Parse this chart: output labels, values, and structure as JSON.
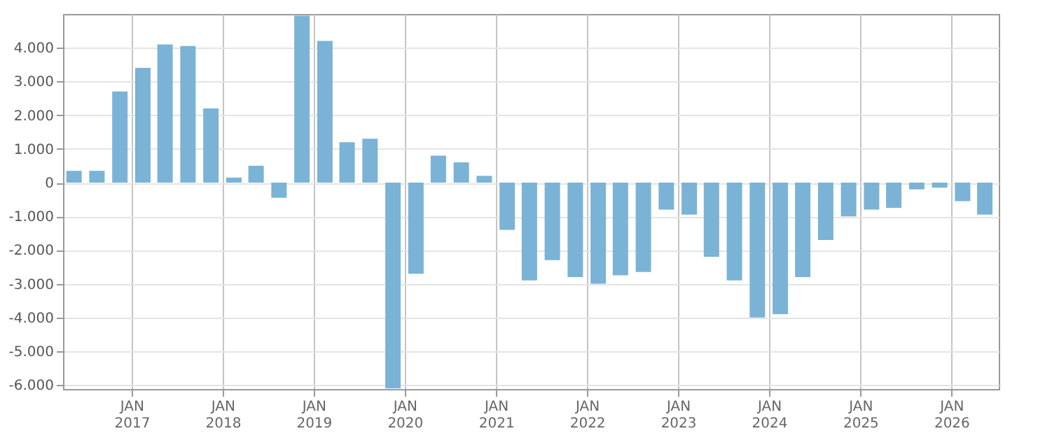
{
  "chart_data": {
    "type": "bar",
    "x": [
      "2016-05-15",
      "2016-08-15",
      "2016-11-15",
      "2017-02-15",
      "2017-05-15",
      "2017-08-15",
      "2017-11-15",
      "2018-02-15",
      "2018-05-15",
      "2018-08-15",
      "2018-11-15",
      "2019-02-15",
      "2019-05-15",
      "2019-08-15",
      "2019-11-15",
      "2020-02-15",
      "2020-05-15",
      "2020-08-15",
      "2020-11-15",
      "2021-02-15",
      "2021-05-15",
      "2021-08-15",
      "2021-11-15",
      "2022-02-15",
      "2022-05-15",
      "2022-08-15",
      "2022-11-15",
      "2023-02-15",
      "2023-05-15",
      "2023-08-15",
      "2023-11-15",
      "2024-02-15",
      "2024-05-15",
      "2024-08-15",
      "2024-11-15",
      "2025-02-15",
      "2025-05-15",
      "2025-08-15",
      "2025-11-15",
      "2026-02-15",
      "2026-05-15"
    ],
    "series": [
      {
        "color": "#7ab3d6",
        "values": [
          350,
          350,
          2700,
          3400,
          4100,
          4050,
          2200,
          150,
          500,
          -450,
          4950,
          4200,
          1200,
          1300,
          -6100,
          -2700,
          800,
          600,
          200,
          -1400,
          -2900,
          -2300,
          -2800,
          -3000,
          -2750,
          -2650,
          -800,
          -950,
          -2200,
          -2900,
          -4000,
          -3900,
          -2800,
          -1700,
          -1000,
          -800,
          -750,
          -200,
          -150,
          -550,
          -950
        ]
      }
    ],
    "xlim": [
      "2016-04-01",
      "2026-07-10"
    ],
    "xticks": [
      {
        "value": "2017-01-01",
        "label": "JAN 2017"
      },
      {
        "value": "2018-01-01",
        "label": "JAN 2018"
      },
      {
        "value": "2019-01-01",
        "label": "JAN 2019"
      },
      {
        "value": "2020-01-01",
        "label": "JAN 2020"
      },
      {
        "value": "2021-01-01",
        "label": "JAN 2021"
      },
      {
        "value": "2022-01-01",
        "label": "JAN 2022"
      },
      {
        "value": "2023-01-01",
        "label": "JAN 2023"
      },
      {
        "value": "2024-01-01",
        "label": "JAN 2024"
      },
      {
        "value": "2025-01-01",
        "label": "JAN 2025"
      },
      {
        "value": "2026-01-01",
        "label": "JAN 2026"
      }
    ],
    "ylim": [
      -6120,
      5000
    ],
    "yticks": [
      {
        "value": -6000,
        "label": "-6.000"
      },
      {
        "value": -5000,
        "label": "-5.000"
      },
      {
        "value": -4000,
        "label": "-4.000"
      },
      {
        "value": -3000,
        "label": "-3.000"
      },
      {
        "value": -2000,
        "label": "-2.000"
      },
      {
        "value": -1000,
        "label": "-1.000"
      },
      0,
      {
        "value": 1000,
        "label": "1.000"
      },
      {
        "value": 2000,
        "label": "2.000"
      },
      {
        "value": 3000,
        "label": "3.000"
      },
      {
        "value": 4000,
        "label": "4.000"
      }
    ],
    "grid": true
  }
}
